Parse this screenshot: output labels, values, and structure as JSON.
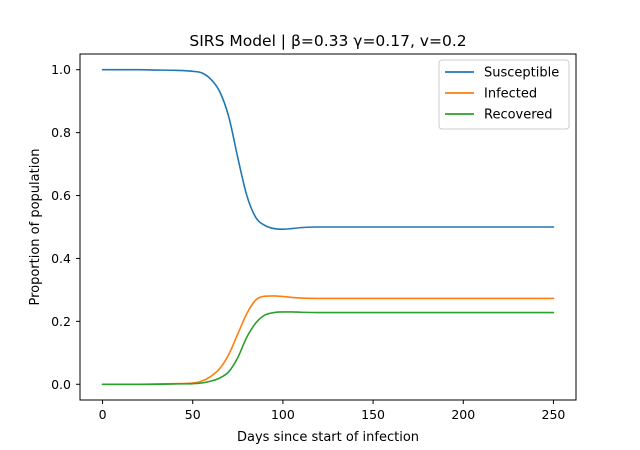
{
  "chart_data": {
    "type": "line",
    "title": "SIRS Model | β=0.33 γ=0.17, v=0.2",
    "xlabel": "Days since start of infection",
    "ylabel": "Proportion of population",
    "xlim": [
      -12.5,
      262.5
    ],
    "ylim": [
      -0.05,
      1.05
    ],
    "xticks": [
      0,
      50,
      100,
      150,
      200,
      250
    ],
    "yticks": [
      0.0,
      0.2,
      0.4,
      0.6,
      0.8,
      1.0
    ],
    "xtick_labels": [
      "0",
      "50",
      "100",
      "150",
      "200",
      "250"
    ],
    "ytick_labels": [
      "0.0",
      "0.2",
      "0.4",
      "0.6",
      "0.8",
      "1.0"
    ],
    "grid": false,
    "legend_position": "top-right",
    "x": [
      0,
      10,
      20,
      30,
      40,
      50,
      55,
      60,
      65,
      70,
      75,
      80,
      85,
      90,
      95,
      100,
      105,
      110,
      120,
      130,
      150,
      200,
      250
    ],
    "series": [
      {
        "name": "Susceptible",
        "color": "#1f77b4",
        "values": [
          1.0,
          1.0,
          1.0,
          0.999,
          0.998,
          0.995,
          0.99,
          0.97,
          0.93,
          0.85,
          0.72,
          0.6,
          0.53,
          0.505,
          0.495,
          0.493,
          0.495,
          0.498,
          0.5,
          0.5,
          0.5,
          0.5,
          0.5
        ]
      },
      {
        "name": "Infected",
        "color": "#ff7f0e",
        "values": [
          0.0,
          0.0,
          0.0,
          0.001,
          0.002,
          0.004,
          0.01,
          0.025,
          0.05,
          0.095,
          0.16,
          0.225,
          0.268,
          0.28,
          0.281,
          0.279,
          0.276,
          0.274,
          0.273,
          0.273,
          0.273,
          0.273,
          0.273
        ]
      },
      {
        "name": "Recovered",
        "color": "#2ca02c",
        "values": [
          0.0,
          0.0,
          0.0,
          0.0,
          0.001,
          0.002,
          0.004,
          0.01,
          0.02,
          0.04,
          0.085,
          0.15,
          0.195,
          0.22,
          0.228,
          0.23,
          0.23,
          0.229,
          0.228,
          0.228,
          0.228,
          0.228,
          0.228
        ]
      }
    ]
  }
}
